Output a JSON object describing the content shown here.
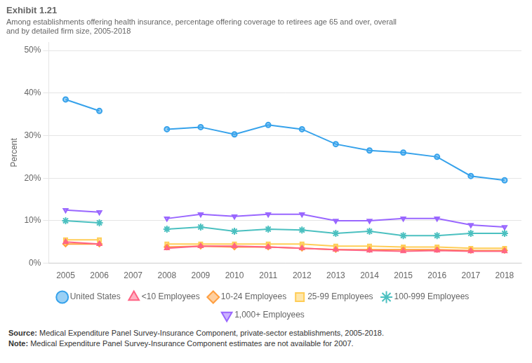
{
  "chart_data": {
    "type": "line",
    "title": "Exhibit 1.21",
    "subtitle": [
      "Among establishments offering health insurance, percentage offering coverage to retirees age 65 and over, overall",
      "and by detailed firm size, 2005-2018"
    ],
    "ylabel": "Percent",
    "x": [
      2005,
      2006,
      2007,
      2008,
      2009,
      2010,
      2011,
      2012,
      2013,
      2014,
      2015,
      2016,
      2017,
      2018
    ],
    "series": [
      {
        "name": "United States",
        "marker": "circle",
        "values": [
          38.5,
          35.8,
          null,
          31.5,
          32.0,
          30.3,
          32.5,
          31.5,
          28.0,
          26.5,
          26.0,
          25.0,
          20.5,
          19.5
        ]
      },
      {
        "name": "<10 Employees",
        "marker": "triangle",
        "values": [
          5.0,
          4.5,
          null,
          3.5,
          4.0,
          4.0,
          3.8,
          3.5,
          3.2,
          3.0,
          2.8,
          3.0,
          2.8,
          2.8
        ]
      },
      {
        "name": "10-24 Employees",
        "marker": "diamond",
        "values": [
          4.5,
          4.5,
          null,
          3.8,
          4.0,
          3.8,
          3.8,
          3.5,
          3.2,
          3.2,
          3.2,
          3.2,
          3.0,
          3.0
        ]
      },
      {
        "name": "25-99 Employees",
        "marker": "square",
        "values": [
          5.5,
          5.5,
          null,
          4.5,
          4.5,
          4.5,
          4.5,
          4.5,
          4.0,
          4.0,
          3.8,
          3.8,
          3.5,
          3.5
        ]
      },
      {
        "name": "100-999 Employees",
        "marker": "star",
        "values": [
          10.0,
          9.5,
          null,
          8.0,
          8.5,
          7.5,
          8.0,
          7.8,
          7.0,
          7.5,
          6.5,
          6.5,
          7.0,
          7.0
        ]
      },
      {
        "name": "1,000+ Employees",
        "marker": "triangle_down",
        "values": [
          12.5,
          12.0,
          null,
          10.5,
          11.5,
          11.0,
          11.5,
          11.5,
          10.0,
          10.0,
          10.5,
          10.5,
          9.0,
          8.5
        ]
      }
    ],
    "xlim": [
      2004.5,
      2018.5
    ],
    "xticks": [
      2005,
      2006,
      2007,
      2008,
      2009,
      2010,
      2011,
      2012,
      2013,
      2014,
      2015,
      2016,
      2017,
      2018
    ],
    "ylim": [
      0,
      52
    ],
    "yticks": [
      {
        "value": 0,
        "label": "0%"
      },
      {
        "value": 10,
        "label": "10%"
      },
      {
        "value": 20,
        "label": "20%"
      },
      {
        "value": 30,
        "label": "30%"
      },
      {
        "value": 40,
        "label": "40%"
      },
      {
        "value": 50,
        "label": "50%"
      }
    ],
    "grid": "y",
    "legend": "bottom",
    "annotations": [
      "Source: Medical Expenditure Panel Survey-Insurance Component, private-sector establishments, 2005-2018.",
      "Note: Medical Expenditure Panel Survey-Insurance Component estimates are not available for 2007."
    ]
  }
}
